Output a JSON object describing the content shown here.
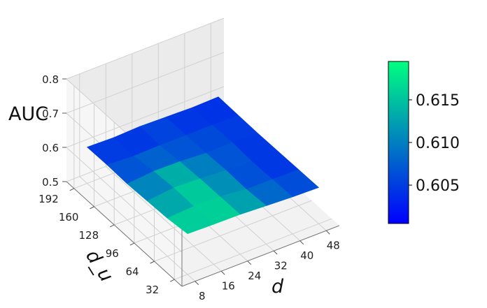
{
  "chart_data": {
    "type": "surface3d",
    "title": "",
    "xlabel": "d",
    "ylabel": "d_u",
    "zlabel": "AUC",
    "x": [
      8,
      16,
      24,
      32,
      40,
      48
    ],
    "y": [
      32,
      64,
      96,
      128,
      160,
      192
    ],
    "xticks": [
      "8",
      "16",
      "24",
      "32",
      "40",
      "48"
    ],
    "yticks": [
      "32",
      "64",
      "96",
      "128",
      "160",
      "192"
    ],
    "zticks": [
      "0.5",
      "0.6",
      "0.7",
      "0.8"
    ],
    "zlim": [
      0.5,
      0.8
    ],
    "z": [
      [
        0.619,
        0.617,
        0.616,
        0.612,
        0.608,
        0.606
      ],
      [
        0.611,
        0.616,
        0.615,
        0.607,
        0.606,
        0.605
      ],
      [
        0.608,
        0.617,
        0.614,
        0.609,
        0.604,
        0.604
      ],
      [
        0.605,
        0.612,
        0.611,
        0.606,
        0.608,
        0.603
      ],
      [
        0.607,
        0.603,
        0.605,
        0.605,
        0.605,
        0.604
      ],
      [
        0.606,
        0.604,
        0.607,
        0.605,
        0.603,
        0.605
      ]
    ],
    "colormap": "winter",
    "colors": {
      "low": "#0000ff",
      "high": "#00ff80"
    },
    "colorbar": {
      "range": [
        0.6005,
        0.6195
      ],
      "ticks": [
        "0.605",
        "0.610",
        "0.615"
      ]
    },
    "grid": true
  }
}
